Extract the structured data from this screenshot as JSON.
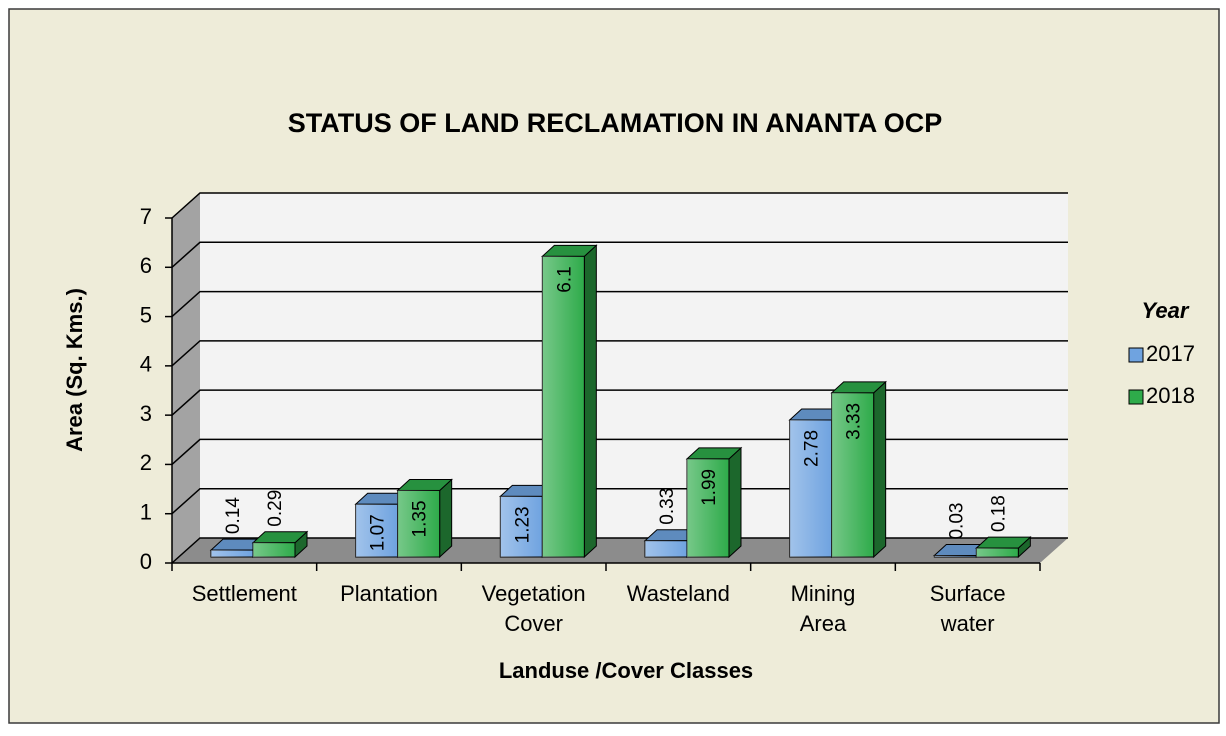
{
  "chart_data": {
    "type": "bar3d",
    "title": "STATUS OF LAND RECLAMATION  IN ANANTA OCP",
    "x_label": "Landuse /Cover Classes",
    "y_label": "Area (Sq. Kms.)",
    "categories": [
      "Settlement",
      "Plantation",
      "Vegetation Cover",
      "Wasteland",
      "Mining Area",
      "Surface water"
    ],
    "series": [
      {
        "name": "2017",
        "color": "#6fa3e0",
        "values": [
          0.14,
          1.07,
          1.23,
          0.33,
          2.78,
          0.03
        ]
      },
      {
        "name": "2018",
        "color": "#2eab4a",
        "values": [
          0.29,
          1.35,
          6.1,
          1.99,
          3.33,
          0.18
        ]
      }
    ],
    "ylim": [
      0,
      7
    ],
    "yticks": [
      0,
      1,
      2,
      3,
      4,
      5,
      6,
      7
    ],
    "grid": true,
    "legend_title": "Year",
    "legend": "right"
  }
}
